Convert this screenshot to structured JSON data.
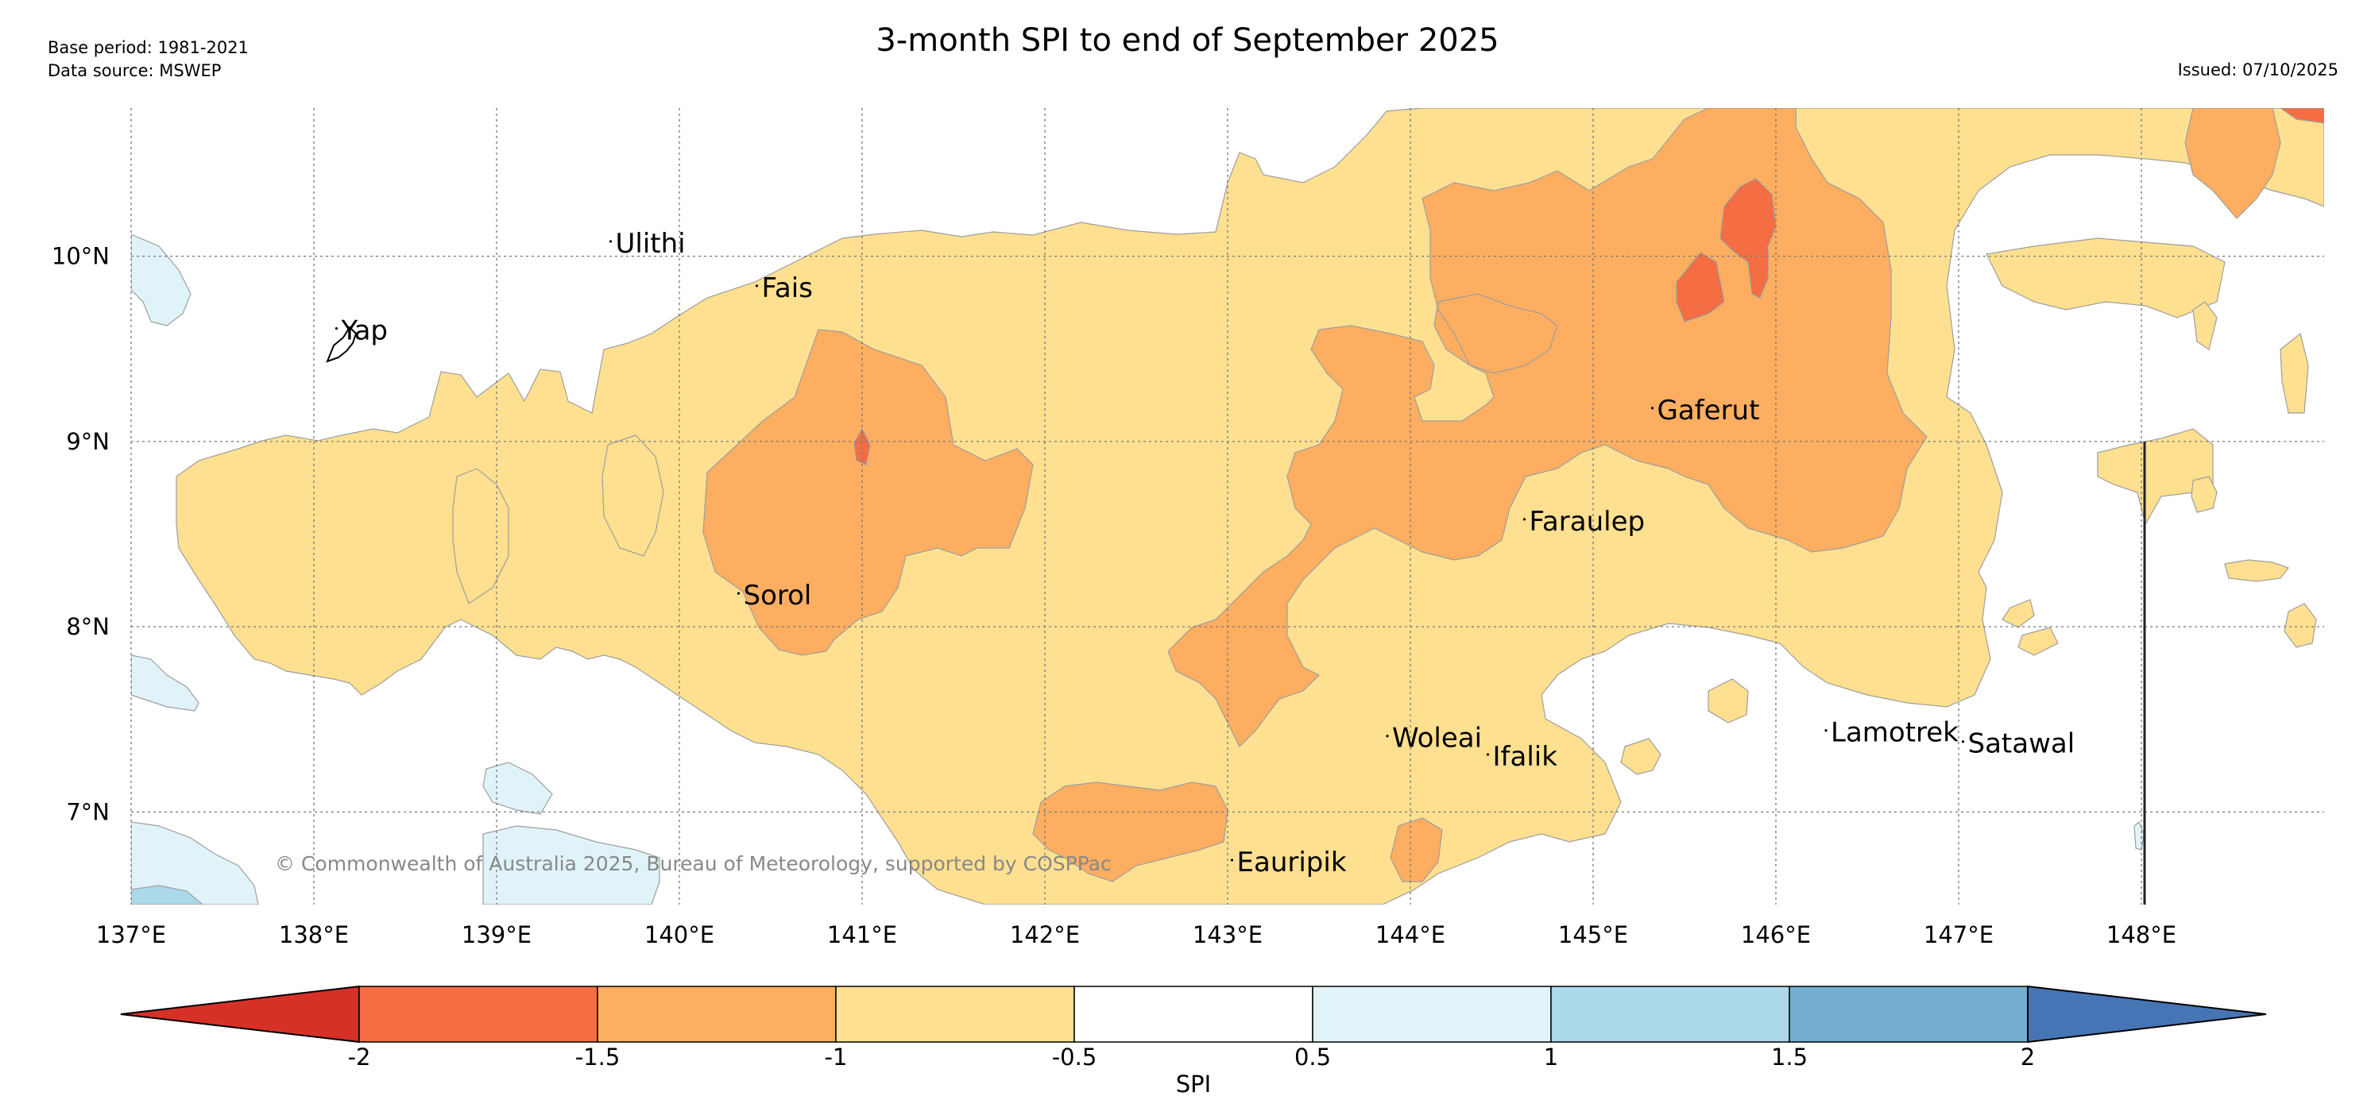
{
  "header": {
    "title": "3-month SPI to end of September 2025",
    "base_period": "Base period: 1981-2021",
    "data_source": "Data source: MSWEP",
    "issued": "Issued: 07/10/2025"
  },
  "map": {
    "lon_range": [
      137,
      149
    ],
    "lat_range": [
      6.5,
      10.8
    ],
    "lon_ticks": [
      {
        "value": 137,
        "label": "137°E"
      },
      {
        "value": 138,
        "label": "138°E"
      },
      {
        "value": 139,
        "label": "139°E"
      },
      {
        "value": 140,
        "label": "140°E"
      },
      {
        "value": 141,
        "label": "141°E"
      },
      {
        "value": 142,
        "label": "142°E"
      },
      {
        "value": 143,
        "label": "143°E"
      },
      {
        "value": 144,
        "label": "144°E"
      },
      {
        "value": 145,
        "label": "145°E"
      },
      {
        "value": 146,
        "label": "146°E"
      },
      {
        "value": 147,
        "label": "147°E"
      },
      {
        "value": 148,
        "label": "148°E"
      }
    ],
    "lat_ticks": [
      {
        "value": 10,
        "label": "10°N"
      },
      {
        "value": 9,
        "label": "9°N"
      },
      {
        "value": 8,
        "label": "8°N"
      },
      {
        "value": 7,
        "label": "7°N"
      }
    ],
    "places": [
      {
        "name": "Yap",
        "lon": 138.15,
        "lat": 9.55
      },
      {
        "name": "Ulithi",
        "lon": 139.65,
        "lat": 10.02
      },
      {
        "name": "Fais",
        "lon": 140.45,
        "lat": 9.78
      },
      {
        "name": "Sorol",
        "lon": 140.35,
        "lat": 8.12
      },
      {
        "name": "Gaferut",
        "lon": 145.35,
        "lat": 9.12
      },
      {
        "name": "Faraulep",
        "lon": 144.65,
        "lat": 8.52
      },
      {
        "name": "Woleai",
        "lon": 143.9,
        "lat": 7.35
      },
      {
        "name": "Ifalik",
        "lon": 144.45,
        "lat": 7.25
      },
      {
        "name": "Eauripik",
        "lon": 143.05,
        "lat": 6.68
      },
      {
        "name": "Lamotrek",
        "lon": 146.3,
        "lat": 7.38
      },
      {
        "name": "Satawal",
        "lon": 147.05,
        "lat": 7.32
      }
    ],
    "copyright": "© Commonwealth of Australia 2025, Bureau of Meteorology, supported by COSPPac"
  },
  "colorbar": {
    "label": "SPI",
    "bins": [
      {
        "color": "#d73027"
      },
      {
        "color": "#f46d43"
      },
      {
        "color": "#fdae61"
      },
      {
        "color": "#fee090"
      },
      {
        "color": "#ffffff"
      },
      {
        "color": "#e0f3f8"
      },
      {
        "color": "#abd9e9"
      },
      {
        "color": "#74add1"
      },
      {
        "color": "#4575b4"
      }
    ],
    "tick_values": [
      -2,
      -1.5,
      -1,
      -0.5,
      0.5,
      1,
      1.5,
      2
    ],
    "tick_labels": [
      "-2",
      "-1.5",
      "-1",
      "-0.5",
      "0.5",
      "1",
      "1.5",
      "2"
    ]
  }
}
